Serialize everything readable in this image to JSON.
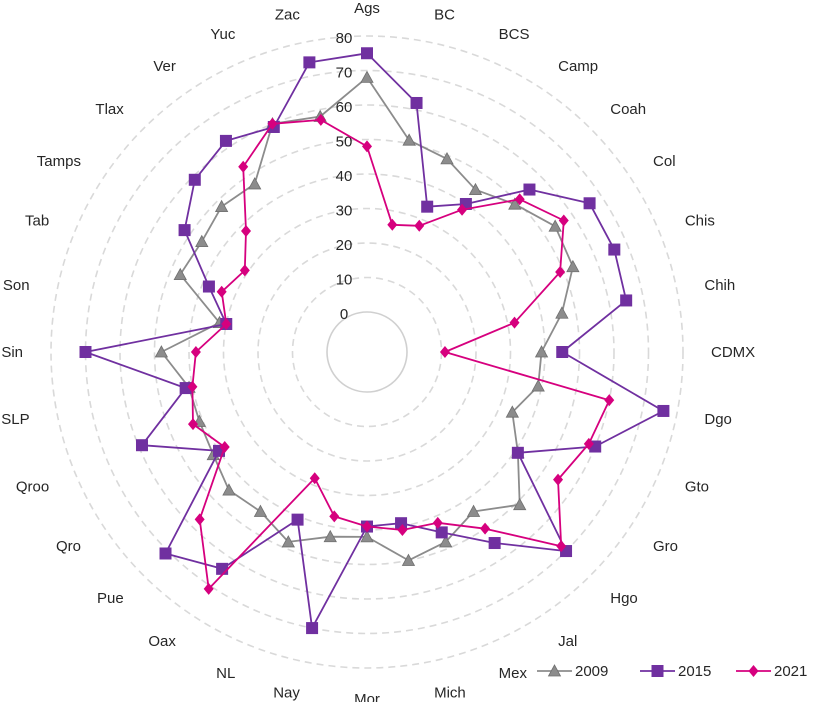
{
  "chart_data": {
    "type": "radar",
    "categories": [
      "Ags",
      "BC",
      "BCS",
      "Camp",
      "Coah",
      "Col",
      "Chis",
      "Chih",
      "CDMX",
      "Dgo",
      "Gto",
      "Gro",
      "Hgo",
      "Jal",
      "Mex",
      "Mich",
      "Mor",
      "Nay",
      "NL",
      "Oax",
      "Pue",
      "Qro",
      "Qroo",
      "SLP",
      "Sin",
      "Son",
      "Tab",
      "Tamps",
      "Tlax",
      "Ver",
      "Yuc",
      "Zac"
    ],
    "r_ticks": [
      0,
      10,
      20,
      30,
      40,
      50,
      60,
      70,
      80
    ],
    "rlim": [
      0,
      80
    ],
    "grid": true,
    "legend_position": "bottom-right",
    "series": [
      {
        "name": "2009",
        "color": "#8c8c8c",
        "marker": "triangle",
        "values": [
          68,
          51,
          49,
          45,
          49,
          54,
          53,
          46,
          39,
          39,
          34,
          41,
          51,
          44,
          48,
          50,
          42,
          43,
          48,
          44,
          45,
          42,
          41,
          41,
          48,
          32,
          47,
          46,
          48,
          47,
          60,
          58
        ]
      },
      {
        "name": "2015",
        "color": "#7030a0",
        "marker": "square",
        "values": [
          75,
          62,
          34,
          40,
          55,
          66,
          66,
          65,
          45,
          76,
          60,
          41,
          70,
          55,
          45,
          39,
          39,
          70,
          41,
          64,
          71,
          40,
          59,
          42,
          70,
          30,
          38,
          52,
          59,
          62,
          59,
          74
        ]
      },
      {
        "name": "2021",
        "color": "#d6007e",
        "marker": "diamond",
        "values": [
          48,
          26,
          28,
          38,
          51,
          57,
          49,
          32,
          11,
          60,
          58,
          55,
          68,
          50,
          42,
          41,
          39,
          37,
          28,
          71,
          57,
          38,
          43,
          40,
          38,
          30,
          34,
          31,
          38,
          53,
          60,
          57
        ]
      }
    ]
  }
}
